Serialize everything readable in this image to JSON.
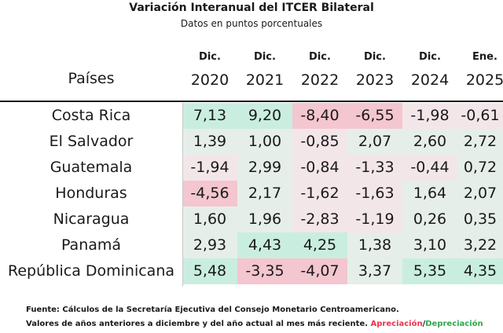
{
  "header": {
    "title": "Variación Interanual del ITCER Bilateral",
    "subtitle": "Datos en puntos porcentuales",
    "row_label": "Países"
  },
  "chart_data": {
    "type": "table",
    "columns": [
      {
        "month": "Dic.",
        "year": "2020"
      },
      {
        "month": "Dic.",
        "year": "2021"
      },
      {
        "month": "Dic.",
        "year": "2022"
      },
      {
        "month": "Dic.",
        "year": "2023"
      },
      {
        "month": "Dic.",
        "year": "2024"
      },
      {
        "month": "Ene.",
        "year": "2025"
      }
    ],
    "rows": [
      {
        "name": "Costa Rica",
        "values": [
          "7,13",
          "9,20",
          "-8,40",
          "-6,55",
          "-1,98",
          "-0,61"
        ]
      },
      {
        "name": "El Salvador",
        "values": [
          "1,39",
          "1,00",
          "-0,85",
          "2,07",
          "2,60",
          "2,72"
        ]
      },
      {
        "name": "Guatemala",
        "values": [
          "-1,94",
          "2,99",
          "-0,84",
          "-1,33",
          "-0,44",
          "0,72"
        ]
      },
      {
        "name": "Honduras",
        "values": [
          "-4,56",
          "2,17",
          "-1,62",
          "-1,63",
          "1,64",
          "2,07"
        ]
      },
      {
        "name": "Nicaragua",
        "values": [
          "1,60",
          "1,96",
          "-2,83",
          "-1,19",
          "0,26",
          "0,35"
        ]
      },
      {
        "name": "Panamá",
        "values": [
          "2,93",
          "4,43",
          "4,25",
          "1,38",
          "3,10",
          "3,22"
        ]
      },
      {
        "name": "República Dominicana",
        "values": [
          "5,48",
          "-3,35",
          "-4,07",
          "3,37",
          "5,35",
          "4,35"
        ]
      }
    ],
    "colors": {
      "appreciation": "#e8344e",
      "depreciation": "#2fa84f",
      "appreciation_strong": "#f4c6cf",
      "appreciation_light": "#f3e6e9",
      "depreciation_strong": "#c9eedf",
      "depreciation_light": "#e6eeea"
    }
  },
  "footer": {
    "source": "Fuente: Cálculos de la Secretaría Ejecutiva del Consejo Monetario Centroamericano.",
    "note": "Valores de años anteriores a diciembre y del año actual al mes más reciente.",
    "legend_appreciation": "Apreciación",
    "legend_slash": "/",
    "legend_depreciation": "Depreciación"
  }
}
